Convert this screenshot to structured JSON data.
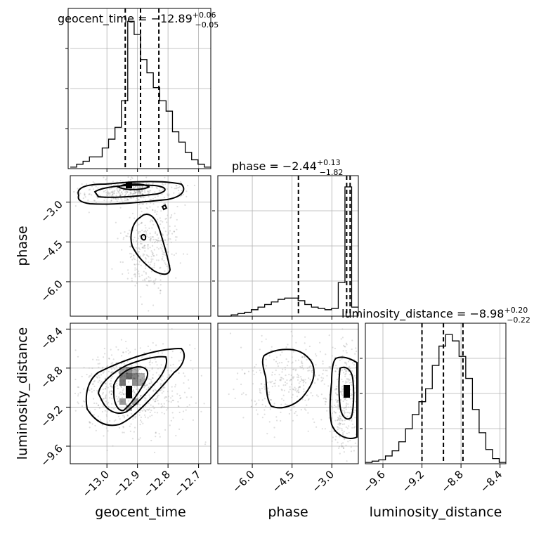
{
  "chart_data": {
    "type": "corner",
    "parameters": [
      {
        "name": "geocent_time",
        "label": "geocent_time",
        "median": "−12.89",
        "plus": "+0.06",
        "minus": "−0.05",
        "median_value": -12.89,
        "q_lo": -12.94,
        "q_hi": -12.83,
        "range": [
          -13.12,
          -12.66
        ],
        "ticks": [
          -13.0,
          -12.9,
          -12.8,
          -12.7
        ],
        "tick_labels": [
          "−13.0",
          "−12.9",
          "−12.8",
          "−12.7"
        ]
      },
      {
        "name": "phase",
        "label": "phase",
        "median": "−2.44",
        "plus": "+0.13",
        "minus": "−1.82",
        "median_value": -2.44,
        "q_lo": -4.26,
        "q_hi": -2.31,
        "range": [
          -7.3,
          -2.0
        ],
        "ticks": [
          -6.0,
          -4.5,
          -3.0
        ],
        "tick_labels": [
          "−6.0",
          "−4.5",
          "−3.0"
        ]
      },
      {
        "name": "luminosity_distance",
        "label": "luminosity_distance",
        "median": "−8.98",
        "plus": "+0.20",
        "minus": "−0.22",
        "median_value": -8.98,
        "q_lo": -9.2,
        "q_hi": -8.78,
        "range": [
          -9.78,
          -8.34
        ],
        "ticks": [
          -9.6,
          -9.2,
          -8.8,
          -8.4
        ],
        "tick_labels": [
          "−9.6",
          "−9.2",
          "−8.8",
          "−8.4"
        ]
      }
    ],
    "histograms": {
      "geocent_time": [
        1,
        3,
        5,
        8,
        8,
        14,
        20,
        28,
        46,
        100,
        91,
        74,
        65,
        55,
        46,
        39,
        25,
        18,
        11,
        6,
        3,
        1
      ],
      "phase": [
        0,
        0,
        1,
        2,
        3,
        5,
        7,
        9,
        11,
        13,
        14,
        14,
        12,
        9,
        7,
        6,
        5,
        6,
        26,
        100,
        7
      ],
      "luminosity_distance": [
        1,
        2,
        3,
        6,
        10,
        17,
        27,
        38,
        48,
        58,
        76,
        91,
        100,
        95,
        83,
        66,
        42,
        24,
        11,
        4,
        1
      ]
    }
  }
}
